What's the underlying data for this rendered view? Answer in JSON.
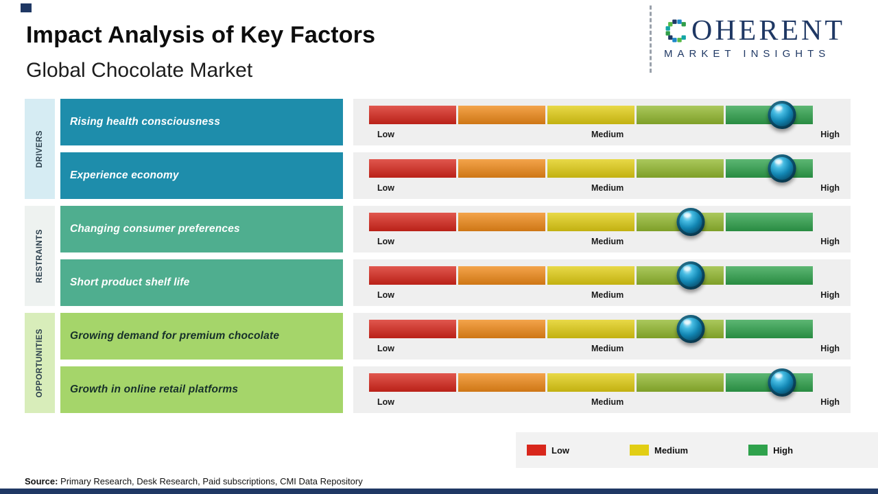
{
  "header": {
    "title": "Impact Analysis of Key Factors",
    "subtitle": "Global Chocolate Market"
  },
  "logo": {
    "word_after_icon": "OHERENT",
    "tagline": "MARKET INSIGHTS"
  },
  "chart_data": {
    "type": "table",
    "title": "Impact Analysis of Key Factors",
    "subtitle": "Global Chocolate Market",
    "scale_labels": [
      "Low",
      "Medium",
      "High"
    ],
    "segment_colors": [
      "#d8271c",
      "#f08a18",
      "#e2ce14",
      "#93b92f",
      "#2fa24c"
    ],
    "groups": [
      {
        "name": "DRIVERS",
        "box_color": "#1e8dab",
        "label_bg": "#d6ecf3",
        "text_color": "#ffffff",
        "factors": [
          {
            "label": "Rising health consciousness",
            "impact": "High",
            "impact_pct": 93
          },
          {
            "label": "Experience economy",
            "impact": "High",
            "impact_pct": 93
          }
        ]
      },
      {
        "name": "RESTRAINTS",
        "box_color": "#4fae8f",
        "label_bg": "#eef2f0",
        "text_color": "#ffffff",
        "factors": [
          {
            "label": "Changing consumer preferences",
            "impact": "Medium-High",
            "impact_pct": 72.5
          },
          {
            "label": "Short product shelf life",
            "impact": "Medium-High",
            "impact_pct": 72.5
          }
        ]
      },
      {
        "name": "OPPORTUNITIES",
        "box_color": "#a5d56a",
        "label_bg": "#d8edba",
        "text_color": "#16302a",
        "factors": [
          {
            "label": "Growing demand for premium chocolate",
            "impact": "Medium-High",
            "impact_pct": 72.5
          },
          {
            "label": "Growth in online retail platforms",
            "impact": "High",
            "impact_pct": 93
          }
        ]
      }
    ]
  },
  "legend": {
    "items": [
      {
        "label": "Low",
        "color": "#d8271c"
      },
      {
        "label": "Medium",
        "color": "#e2ce14"
      },
      {
        "label": "High",
        "color": "#2fa24c"
      }
    ]
  },
  "source": {
    "prefix": "Source:",
    "text": " Primary Research, Desk Research, Paid subscriptions, CMI Data Repository"
  }
}
